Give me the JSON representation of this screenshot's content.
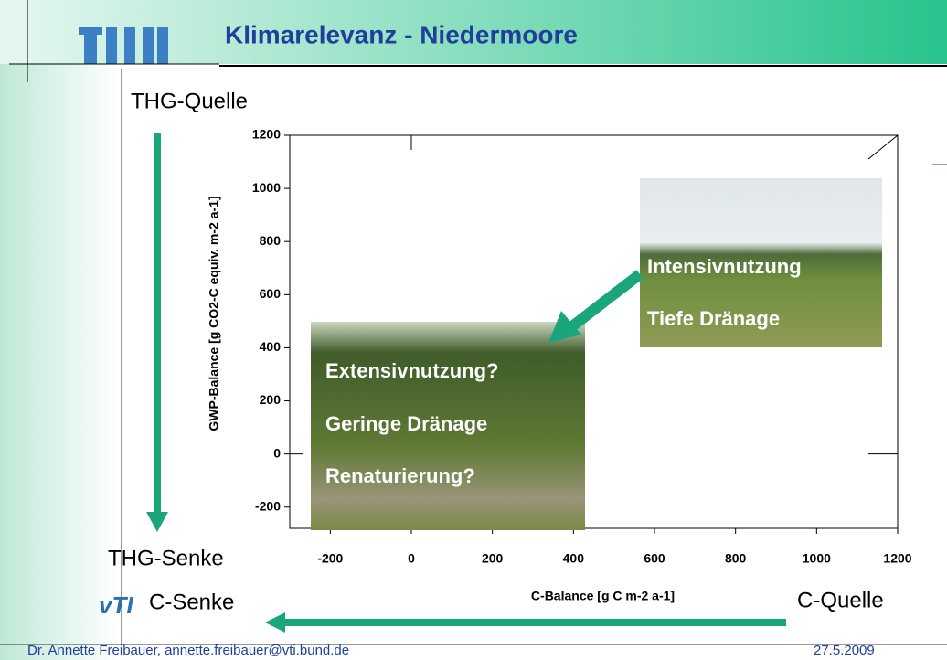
{
  "slide": {
    "title": "Klimarelevanz - Niedermoore",
    "source_label": "THG-Quelle",
    "sink_label": "THG-Senke",
    "c_sink_label": "C-Senke",
    "c_source_label": "C-Quelle",
    "logo": "vTI",
    "footer_author": "Dr. Annette Freibauer, annette.freibauer@vti.bund.de",
    "footer_date": "27.5.2009",
    "photo_top": [
      "Intensivnutzung",
      "Tiefe Dränage"
    ],
    "photo_bottom": [
      "Extensivnutzung?",
      "Geringe Dränage",
      "Renaturierung?"
    ]
  },
  "chart_data": {
    "type": "scatter",
    "x_label": "C-Balance [g C m-2 a-1]",
    "y_label": "GWP-Balance [g CO2-C equiv. m-2 a-1]",
    "xlim": [
      -300,
      1200
    ],
    "ylim": [
      -280,
      1200
    ],
    "xticks": [
      -200,
      0,
      200,
      400,
      600,
      800,
      1000,
      1200
    ],
    "yticks": [
      -200,
      0,
      200,
      400,
      600,
      800,
      1000,
      1200
    ]
  }
}
